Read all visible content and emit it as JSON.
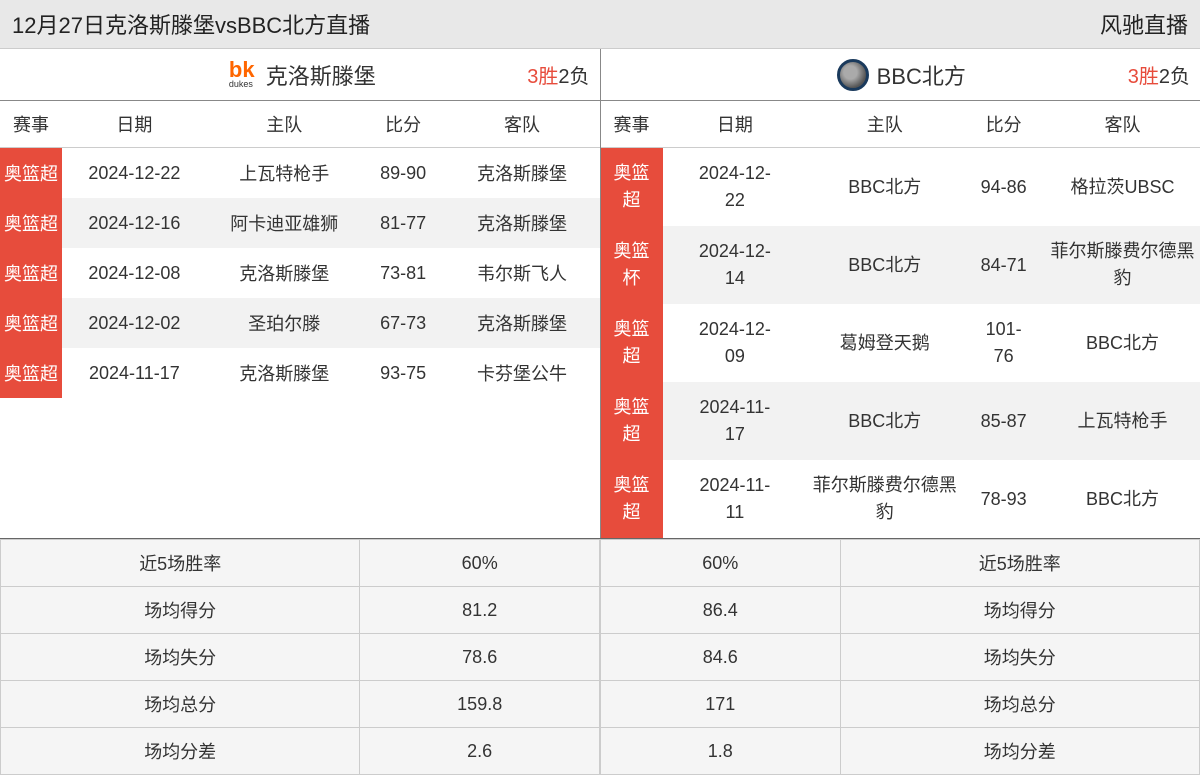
{
  "header": {
    "title": "12月27日克洛斯滕堡vsBBC北方直播",
    "brand": "风驰直播"
  },
  "teamA": {
    "name": "克洛斯滕堡",
    "record_win": "3胜",
    "record_loss": "2负",
    "columns": {
      "league": "赛事",
      "date": "日期",
      "home": "主队",
      "score": "比分",
      "away": "客队"
    },
    "matches": [
      {
        "league": "奥篮超",
        "date": "2024-12-22",
        "home": "上瓦特枪手",
        "score": "89-90",
        "away": "克洛斯滕堡"
      },
      {
        "league": "奥篮超",
        "date": "2024-12-16",
        "home": "阿卡迪亚雄狮",
        "score": "81-77",
        "away": "克洛斯滕堡"
      },
      {
        "league": "奥篮超",
        "date": "2024-12-08",
        "home": "克洛斯滕堡",
        "score": "73-81",
        "away": "韦尔斯飞人"
      },
      {
        "league": "奥篮超",
        "date": "2024-12-02",
        "home": "圣珀尔滕",
        "score": "67-73",
        "away": "克洛斯滕堡"
      },
      {
        "league": "奥篮超",
        "date": "2024-11-17",
        "home": "克洛斯滕堡",
        "score": "93-75",
        "away": "卡芬堡公牛"
      }
    ]
  },
  "teamB": {
    "name": "BBC北方",
    "record_win": "3胜",
    "record_loss": "2负",
    "columns": {
      "league": "赛事",
      "date": "日期",
      "home": "主队",
      "score": "比分",
      "away": "客队"
    },
    "matches": [
      {
        "league": "奥篮超",
        "date": "2024-12-22",
        "home": "BBC北方",
        "score": "94-86",
        "away": "格拉茨UBSC"
      },
      {
        "league": "奥篮杯",
        "date": "2024-12-14",
        "home": "BBC北方",
        "score": "84-71",
        "away": "菲尔斯滕费尔德黑豹"
      },
      {
        "league": "奥篮超",
        "date": "2024-12-09",
        "home": "葛姆登天鹅",
        "score": "101-76",
        "away": "BBC北方"
      },
      {
        "league": "奥篮超",
        "date": "2024-11-17",
        "home": "BBC北方",
        "score": "85-87",
        "away": "上瓦特枪手"
      },
      {
        "league": "奥篮超",
        "date": "2024-11-11",
        "home": "菲尔斯滕费尔德黑豹",
        "score": "78-93",
        "away": "BBC北方"
      }
    ]
  },
  "statsLabels": {
    "winrate": "近5场胜率",
    "avg_pts": "场均得分",
    "avg_concede": "场均失分",
    "avg_total": "场均总分",
    "avg_diff": "场均分差"
  },
  "statsA": {
    "winrate": "60%",
    "avg_pts": "81.2",
    "avg_concede": "78.6",
    "avg_total": "159.8",
    "avg_diff": "2.6"
  },
  "statsB": {
    "winrate": "60%",
    "avg_pts": "86.4",
    "avg_concede": "84.6",
    "avg_total": "171",
    "avg_diff": "1.8"
  }
}
